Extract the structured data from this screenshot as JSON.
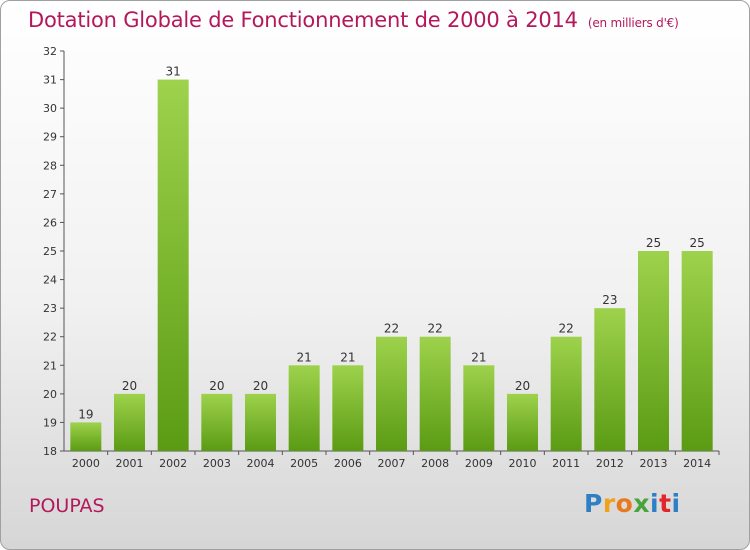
{
  "header": {
    "title": "Dotation Globale de Fonctionnement de 2000 à 2014",
    "subtitle": "(en milliers d'€)"
  },
  "commune": "POUPAS",
  "logo": {
    "text": "Proxiti",
    "letters": [
      "P",
      "r",
      "o",
      "x",
      "i",
      "t",
      "i"
    ]
  },
  "colors": {
    "title": "#b4185c",
    "bar_top": "#9ed24c",
    "bar_bottom": "#5b9b14",
    "axis": "#555555"
  },
  "chart_data": {
    "type": "bar",
    "title": "Dotation Globale de Fonctionnement de 2000 à 2014",
    "xlabel": "",
    "ylabel": "(en milliers d'€)",
    "ylim": [
      18,
      32
    ],
    "yticks": [
      18,
      19,
      20,
      21,
      22,
      23,
      24,
      25,
      26,
      27,
      28,
      29,
      30,
      31,
      32
    ],
    "grid": false,
    "categories": [
      "2000",
      "2001",
      "2002",
      "2003",
      "2004",
      "2005",
      "2006",
      "2007",
      "2008",
      "2009",
      "2010",
      "2011",
      "2012",
      "2013",
      "2014"
    ],
    "values": [
      19,
      20,
      31,
      20,
      20,
      21,
      21,
      22,
      22,
      21,
      20,
      22,
      23,
      25,
      25
    ]
  }
}
